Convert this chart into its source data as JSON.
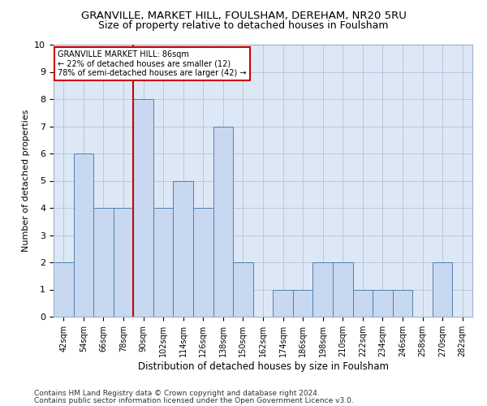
{
  "title": "GRANVILLE, MARKET HILL, FOULSHAM, DEREHAM, NR20 5RU",
  "subtitle": "Size of property relative to detached houses in Foulsham",
  "xlabel": "Distribution of detached houses by size in Foulsham",
  "ylabel": "Number of detached properties",
  "categories": [
    "42sqm",
    "54sqm",
    "66sqm",
    "78sqm",
    "90sqm",
    "102sqm",
    "114sqm",
    "126sqm",
    "138sqm",
    "150sqm",
    "162sqm",
    "174sqm",
    "186sqm",
    "198sqm",
    "210sqm",
    "222sqm",
    "234sqm",
    "246sqm",
    "258sqm",
    "270sqm",
    "282sqm"
  ],
  "values": [
    2,
    6,
    4,
    4,
    8,
    4,
    5,
    4,
    7,
    2,
    0,
    1,
    1,
    2,
    2,
    1,
    1,
    1,
    0,
    2,
    0
  ],
  "bar_color": "#c8d8f0",
  "bar_edge_color": "#5080b0",
  "grid_color": "#b8c8dc",
  "annotation_text_line1": "GRANVILLE MARKET HILL: 86sqm",
  "annotation_text_line2": "← 22% of detached houses are smaller (12)",
  "annotation_text_line3": "78% of semi-detached houses are larger (42) →",
  "annotation_box_color": "#ffffff",
  "annotation_box_edge_color": "#cc0000",
  "red_line_color": "#cc0000",
  "ylim": [
    0,
    10
  ],
  "yticks": [
    0,
    1,
    2,
    3,
    4,
    5,
    6,
    7,
    8,
    9,
    10
  ],
  "footnote1": "Contains HM Land Registry data © Crown copyright and database right 2024.",
  "footnote2": "Contains public sector information licensed under the Open Government Licence v3.0.",
  "title_fontsize": 9.5,
  "subtitle_fontsize": 9,
  "xlabel_fontsize": 8.5,
  "ylabel_fontsize": 8,
  "tick_fontsize": 7,
  "footnote_fontsize": 6.5
}
